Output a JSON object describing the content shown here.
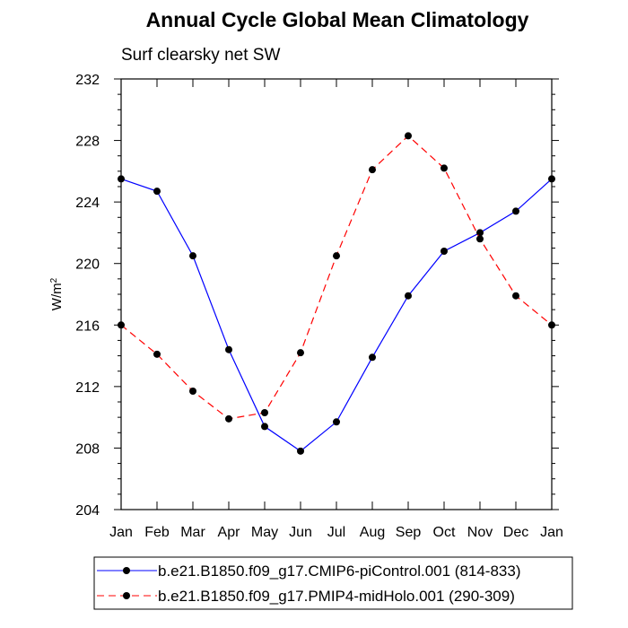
{
  "chart_data": {
    "type": "line",
    "title": "Annual Cycle Global Mean Climatology",
    "subtitle": "Surf clearsky net SW",
    "ylabel": "W/m",
    "ylabel_sup": "2",
    "xlabel": "",
    "categories": [
      "Jan",
      "Feb",
      "Mar",
      "Apr",
      "May",
      "Jun",
      "Jul",
      "Aug",
      "Sep",
      "Oct",
      "Nov",
      "Dec",
      "Jan"
    ],
    "ylim": [
      204,
      232
    ],
    "yticks": [
      204,
      208,
      212,
      216,
      220,
      224,
      228,
      232
    ],
    "series": [
      {
        "name": "b.e21.B1850.f09_g17.CMIP6-piControl.001 (814-833)",
        "color": "#0000ff",
        "dash": "solid",
        "values": [
          225.5,
          224.7,
          220.5,
          214.4,
          209.4,
          207.8,
          209.7,
          213.9,
          217.9,
          220.8,
          222.0,
          223.4,
          225.5
        ]
      },
      {
        "name": "b.e21.B1850.f09_g17.PMIP4-midHolo.001 (290-309)",
        "color": "#ff0000",
        "dash": "dashed",
        "values": [
          216.0,
          214.1,
          211.7,
          209.9,
          210.3,
          214.2,
          220.5,
          226.1,
          228.3,
          226.2,
          221.6,
          217.9,
          216.0
        ]
      }
    ]
  }
}
